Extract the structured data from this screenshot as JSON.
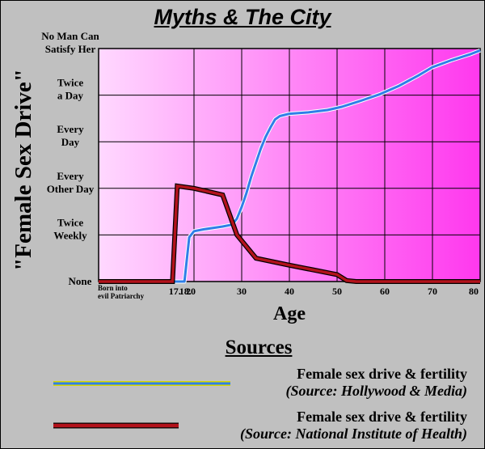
{
  "title": "Myths & The City",
  "chart_data": {
    "type": "line",
    "xlabel": "Age",
    "ylabel": "\"Female Sex Drive\"",
    "x_ticks": [
      {
        "value": 0,
        "label": "Born into evil Patriarchy"
      },
      {
        "value": 17,
        "label": "17."
      },
      {
        "value": 18,
        "label": "18."
      },
      {
        "value": 20,
        "label": "20"
      },
      {
        "value": 30,
        "label": "30"
      },
      {
        "value": 40,
        "label": "40"
      },
      {
        "value": 50,
        "label": "50"
      },
      {
        "value": 60,
        "label": "60"
      },
      {
        "value": 70,
        "label": "70"
      },
      {
        "value": 80,
        "label": "80"
      }
    ],
    "y_levels": [
      {
        "value": 0,
        "label": "None"
      },
      {
        "value": 1,
        "label": "Twice Weekly"
      },
      {
        "value": 2,
        "label": "Every Other Day"
      },
      {
        "value": 3,
        "label": "Every Day"
      },
      {
        "value": 4,
        "label": "Twice a Day"
      },
      {
        "value": 5,
        "label": "No Man Can Satisfy Her"
      }
    ],
    "ylim": [
      0,
      5
    ],
    "grid": true,
    "series": [
      {
        "name": "Female sex drive & fertility",
        "source": "(Source: Hollywood & Media)",
        "color": "#2f7fe8",
        "points": [
          [
            0,
            0
          ],
          [
            14,
            0
          ],
          [
            18,
            0
          ],
          [
            19,
            0.95
          ],
          [
            20,
            1.08
          ],
          [
            22,
            1.12
          ],
          [
            26,
            1.18
          ],
          [
            28,
            1.22
          ],
          [
            29,
            1.35
          ],
          [
            30,
            1.6
          ],
          [
            31,
            1.9
          ],
          [
            32,
            2.25
          ],
          [
            33,
            2.55
          ],
          [
            34,
            2.85
          ],
          [
            35,
            3.1
          ],
          [
            36,
            3.3
          ],
          [
            37,
            3.48
          ],
          [
            38,
            3.55
          ],
          [
            40,
            3.6
          ],
          [
            44,
            3.63
          ],
          [
            48,
            3.68
          ],
          [
            51,
            3.75
          ],
          [
            55,
            3.88
          ],
          [
            59,
            4.02
          ],
          [
            63,
            4.2
          ],
          [
            67,
            4.42
          ],
          [
            70,
            4.6
          ],
          [
            74,
            4.75
          ],
          [
            78,
            4.88
          ],
          [
            80,
            4.96
          ]
        ]
      },
      {
        "name": "Female sex drive & fertility",
        "source": "(Source: National Institute of Health)",
        "color": "#b3121b",
        "points": [
          [
            0,
            0
          ],
          [
            15.5,
            0
          ],
          [
            16.5,
            2.05
          ],
          [
            20,
            2.0
          ],
          [
            26,
            1.86
          ],
          [
            29,
            1.0
          ],
          [
            33,
            0.5
          ],
          [
            40,
            0.35
          ],
          [
            45,
            0.25
          ],
          [
            50,
            0.15
          ],
          [
            52,
            0.02
          ],
          [
            54,
            0
          ],
          [
            80,
            0
          ]
        ]
      }
    ]
  },
  "legend_title": "Sources",
  "legend": [
    {
      "name": "Female sex drive & fertility",
      "source": "(Source: Hollywood & Media)"
    },
    {
      "name": "Female sex drive & fertility",
      "source": "(Source: National Institute of Health)"
    }
  ]
}
